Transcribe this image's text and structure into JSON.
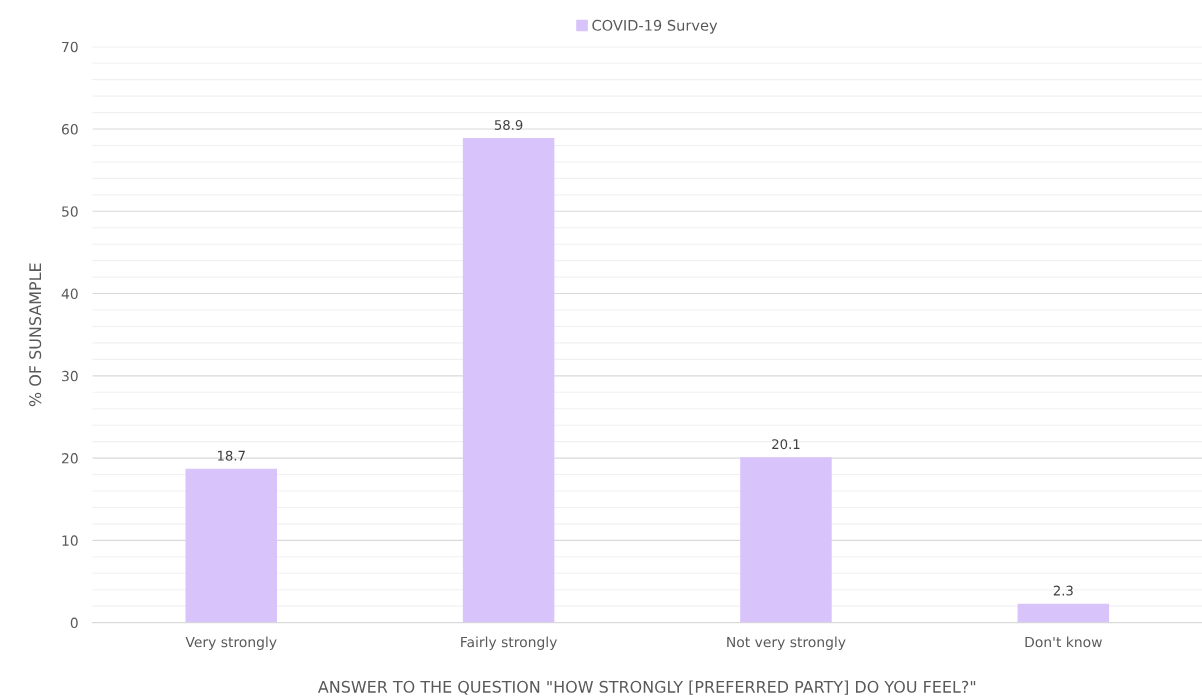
{
  "chart_data": {
    "type": "bar",
    "xlabel": "ANSWER TO THE QUESTION \"HOW STRONGLY [PREFERRED PARTY] DO YOU FEEL?\"",
    "ylabel": "% OF SUNSAMPLE",
    "categories": [
      "Very strongly",
      "Fairly strongly",
      "Not very strongly",
      "Don't know"
    ],
    "series": [
      {
        "name": "COVID-19 Survey",
        "color": "#d9c3fb",
        "values": [
          18.7,
          58.9,
          20.1,
          2.3
        ]
      }
    ],
    "ylim": [
      0,
      70
    ],
    "yticks": [
      0,
      {
        "value": 2,
        "label": null
      },
      {
        "value": 4,
        "label": null
      },
      {
        "value": 6,
        "label": null
      },
      {
        "value": 8,
        "label": null
      },
      10,
      {
        "value": 12,
        "label": null
      },
      {
        "value": 14,
        "label": null
      },
      {
        "value": 16,
        "label": null
      },
      {
        "value": 18,
        "label": null
      },
      20,
      {
        "value": 22,
        "label": null
      },
      {
        "value": 24,
        "label": null
      },
      {
        "value": 26,
        "label": null
      },
      {
        "value": 28,
        "label": null
      },
      30,
      {
        "value": 32,
        "label": null
      },
      {
        "value": 34,
        "label": null
      },
      {
        "value": 36,
        "label": null
      },
      {
        "value": 38,
        "label": null
      },
      40,
      {
        "value": 42,
        "label": null
      },
      {
        "value": 44,
        "label": null
      },
      {
        "value": 46,
        "label": null
      },
      {
        "value": 48,
        "label": null
      },
      50,
      {
        "value": 52,
        "label": null
      },
      {
        "value": 54,
        "label": null
      },
      {
        "value": 56,
        "label": null
      },
      {
        "value": 58,
        "label": null
      },
      60,
      {
        "value": 62,
        "label": null
      },
      {
        "value": 64,
        "label": null
      },
      {
        "value": 66,
        "label": null
      },
      {
        "value": 68,
        "label": null
      },
      70
    ],
    "grid": "y",
    "legend": "top",
    "data_labels": true
  }
}
